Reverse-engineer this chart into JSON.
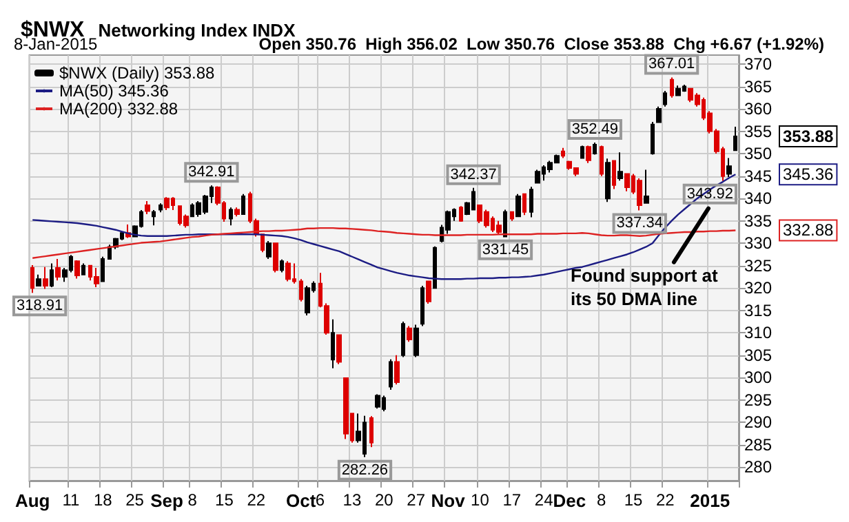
{
  "chart_data": {
    "type": "candlestick",
    "title": "$NWX",
    "subtitle": "Networking Index INDX",
    "categories": [
      "Aug",
      null,
      null,
      null,
      null,
      null,
      "11",
      null,
      null,
      null,
      null,
      "18",
      null,
      null,
      null,
      null,
      "25",
      null,
      null,
      null,
      null,
      "Sep",
      null,
      null,
      null,
      "8",
      null,
      null,
      null,
      null,
      "15",
      null,
      null,
      null,
      null,
      "22",
      null,
      null,
      null,
      null,
      null,
      null,
      "Oct",
      null,
      null,
      "6",
      null,
      null,
      null,
      null,
      "13",
      null,
      null,
      null,
      null,
      "20",
      null,
      null,
      null,
      null,
      "27",
      null,
      null,
      null,
      null,
      "Nov",
      null,
      null,
      null,
      null,
      "10",
      null,
      null,
      null,
      null,
      "17",
      null,
      null,
      null,
      null,
      "24",
      null,
      null,
      null,
      "Dec",
      null,
      null,
      null,
      null,
      "8",
      null,
      null,
      null,
      null,
      "15",
      null,
      null,
      null,
      null,
      "22",
      null,
      null,
      null,
      null,
      null,
      null,
      "2015",
      null,
      null,
      null,
      null
    ],
    "series": [
      {
        "type": "candlestick",
        "name": "$NWX (Daily) 353.88",
        "ohlc": [
          [
            324.5,
            325.1,
            318.91,
            320.0
          ],
          [
            320.5,
            323.0,
            320.5,
            322.0
          ],
          [
            322.0,
            324.7,
            319.8,
            320.5
          ],
          [
            320.5,
            325.5,
            320.2,
            324.0
          ],
          [
            324.5,
            326.5,
            321.7,
            322.5
          ],
          [
            322.5,
            324.5,
            321.4,
            324.0
          ],
          [
            324.0,
            327.4,
            323.5,
            327.0
          ],
          [
            326.0,
            326.2,
            322.1,
            322.8
          ],
          [
            323.0,
            325.5,
            323.0,
            325.0
          ],
          [
            325.0,
            325.0,
            321.7,
            322.5
          ],
          [
            322.5,
            324.5,
            320.2,
            321.0
          ],
          [
            321.5,
            327.0,
            321.5,
            326.5
          ],
          [
            326.5,
            329.7,
            326.5,
            329.2
          ],
          [
            329.2,
            331.2,
            328.7,
            331.0
          ],
          [
            331.0,
            332.6,
            330.7,
            332.3
          ],
          [
            332.3,
            334.2,
            331.2,
            331.5
          ],
          [
            331.5,
            334.0,
            331.5,
            333.8
          ],
          [
            333.8,
            337.4,
            333.5,
            337.0
          ],
          [
            338.5,
            339.4,
            336.5,
            337.2
          ],
          [
            336.0,
            337.4,
            334.0,
            337.0
          ],
          [
            337.5,
            338.9,
            336.9,
            338.5
          ],
          [
            340.0,
            340.3,
            337.4,
            338.0
          ],
          [
            340.0,
            340.3,
            337.4,
            338.5
          ],
          [
            338.3,
            338.3,
            334.0,
            334.5
          ],
          [
            336.0,
            336.4,
            333.5,
            334.0
          ],
          [
            336.0,
            338.9,
            335.9,
            338.5
          ],
          [
            336.5,
            339.4,
            335.9,
            339.0
          ],
          [
            337.0,
            340.8,
            336.5,
            340.5
          ],
          [
            340.5,
            342.91,
            339.0,
            342.5
          ],
          [
            342.5,
            342.7,
            338.5,
            339.0
          ],
          [
            339.0,
            339.4,
            334.8,
            335.5
          ],
          [
            335.5,
            338.0,
            334.0,
            337.5
          ],
          [
            337.5,
            338.0,
            336.0,
            336.5
          ],
          [
            336.5,
            341.0,
            336.5,
            340.5
          ],
          [
            341.0,
            341.5,
            334.5,
            335.0
          ],
          [
            335.0,
            335.5,
            331.5,
            332.0
          ],
          [
            332.0,
            332.0,
            328.0,
            328.5
          ],
          [
            327.0,
            330.5,
            326.5,
            330.0
          ],
          [
            330.0,
            330.0,
            323.5,
            324.0
          ],
          [
            324.0,
            326.4,
            323.5,
            326.0
          ],
          [
            325.5,
            326.0,
            321.5,
            322.0
          ],
          [
            322.0,
            325.5,
            321.0,
            321.5
          ],
          [
            321.5,
            322.0,
            317.0,
            317.5
          ],
          [
            314.5,
            320.5,
            313.9,
            320.0
          ],
          [
            319.5,
            321.5,
            319.0,
            321.0
          ],
          [
            321.0,
            323.4,
            315.7,
            316.0
          ],
          [
            316.0,
            316.6,
            309.6,
            310.0
          ],
          [
            304.0,
            313.0,
            302.1,
            310.0
          ],
          [
            309.5,
            309.6,
            303.0,
            303.5
          ],
          [
            299.9,
            299.9,
            286.3,
            287.5
          ],
          [
            292.0,
            292.1,
            285.5,
            286.0
          ],
          [
            286.0,
            292.0,
            285.5,
            288.0
          ],
          [
            283.0,
            291.5,
            282.26,
            290.0
          ],
          [
            291.0,
            291.4,
            284.5,
            285.5
          ],
          [
            293.5,
            296.3,
            293.1,
            296.0
          ],
          [
            293.0,
            296.0,
            292.5,
            295.5
          ],
          [
            298.0,
            304.1,
            297.3,
            303.5
          ],
          [
            303.5,
            305.0,
            298.5,
            299.0
          ],
          [
            305.0,
            312.5,
            304.6,
            312.0
          ],
          [
            311.0,
            311.5,
            308.0,
            308.5
          ],
          [
            305.0,
            311.8,
            304.6,
            311.0
          ],
          [
            312.0,
            320.5,
            311.5,
            320.0
          ],
          [
            321.5,
            321.5,
            316.5,
            317.0
          ],
          [
            320.0,
            329.3,
            320.0,
            329.0
          ],
          [
            330.5,
            334.1,
            330.2,
            333.5
          ],
          [
            333.0,
            337.3,
            332.1,
            337.0
          ],
          [
            336.0,
            337.8,
            335.0,
            337.5
          ],
          [
            338.0,
            338.3,
            334.8,
            335.0
          ],
          [
            336.5,
            339.2,
            336.3,
            339.0
          ],
          [
            337.5,
            342.37,
            337.5,
            341.5
          ],
          [
            338.5,
            338.5,
            334.5,
            335.0
          ],
          [
            337.0,
            337.5,
            333.5,
            334.0
          ],
          [
            335.5,
            336.0,
            332.5,
            333.0
          ],
          [
            334.0,
            335.0,
            332.0,
            332.5
          ],
          [
            331.5,
            337.5,
            331.45,
            337.0
          ],
          [
            337.0,
            337.0,
            335.0,
            335.5
          ],
          [
            336.0,
            341.0,
            336.0,
            340.5
          ],
          [
            341.0,
            341.0,
            336.3,
            337.0
          ],
          [
            337.0,
            342.6,
            335.8,
            342.0
          ],
          [
            343.5,
            346.4,
            343.5,
            346.0
          ],
          [
            345.5,
            347.4,
            344.0,
            347.0
          ],
          [
            346.5,
            348.4,
            345.8,
            348.0
          ],
          [
            348.0,
            349.8,
            347.9,
            349.5
          ],
          [
            350.5,
            351.3,
            349.0,
            349.5
          ],
          [
            348.2,
            348.4,
            346.4,
            346.8
          ],
          [
            346.8,
            346.9,
            345.0,
            345.5
          ],
          [
            349.0,
            351.8,
            348.9,
            351.5
          ],
          [
            351.5,
            351.8,
            347.9,
            348.5
          ],
          [
            350.0,
            352.49,
            349.8,
            352.0
          ],
          [
            351.5,
            351.8,
            345.0,
            345.5
          ],
          [
            340.0,
            348.9,
            339.2,
            348.0
          ],
          [
            348.4,
            348.4,
            342.1,
            343.0
          ],
          [
            344.5,
            350.3,
            344.0,
            346.0
          ],
          [
            345.5,
            345.5,
            341.6,
            342.5
          ],
          [
            345.0,
            345.5,
            341.0,
            341.5
          ],
          [
            344.0,
            344.5,
            337.34,
            338.5
          ],
          [
            339.0,
            346.4,
            338.9,
            340.5
          ],
          [
            350.0,
            357.1,
            349.8,
            356.5
          ],
          [
            357.0,
            360.5,
            357.0,
            360.0
          ],
          [
            361.0,
            364.0,
            360.5,
            363.5
          ],
          [
            366.5,
            367.01,
            362.5,
            363.0
          ],
          [
            363.0,
            365.2,
            363.0,
            364.5
          ],
          [
            364.0,
            365.4,
            363.8,
            365.0
          ],
          [
            364.5,
            364.5,
            361.5,
            362.0
          ],
          [
            363.0,
            363.5,
            360.5,
            361.0
          ],
          [
            362.0,
            362.5,
            357.5,
            358.0
          ],
          [
            359.0,
            359.5,
            354.5,
            355.0
          ],
          [
            355.0,
            355.5,
            350.0,
            350.5
          ],
          [
            351.0,
            351.5,
            343.92,
            345.0
          ],
          [
            345.5,
            349.0,
            344.8,
            347.21
          ],
          [
            350.76,
            356.02,
            350.76,
            353.88
          ]
        ],
        "colors": [
          "#dd0000",
          "#000000",
          "#dd0000",
          "#000000",
          "#dd0000",
          "#000000",
          "#000000",
          "#dd0000",
          "#000000",
          "#dd0000",
          "#dd0000",
          "#000000",
          "#000000",
          "#000000",
          "#000000",
          "#dd0000",
          "#000000",
          "#000000",
          "#dd0000",
          "#000000",
          "#000000",
          "#dd0000",
          "#dd0000",
          "#dd0000",
          "#dd0000",
          "#000000",
          "#000000",
          "#000000",
          "#000000",
          "#dd0000",
          "#dd0000",
          "#000000",
          "#dd0000",
          "#000000",
          "#dd0000",
          "#dd0000",
          "#dd0000",
          "#000000",
          "#dd0000",
          "#000000",
          "#dd0000",
          "#dd0000",
          "#dd0000",
          "#000000",
          "#000000",
          "#dd0000",
          "#dd0000",
          "#000000",
          "#dd0000",
          "#dd0000",
          "#dd0000",
          "#000000",
          "#000000",
          "#dd0000",
          "#000000",
          "#000000",
          "#000000",
          "#dd0000",
          "#000000",
          "#dd0000",
          "#000000",
          "#000000",
          "#dd0000",
          "#000000",
          "#000000",
          "#000000",
          "#000000",
          "#dd0000",
          "#000000",
          "#000000",
          "#dd0000",
          "#dd0000",
          "#dd0000",
          "#dd0000",
          "#000000",
          "#dd0000",
          "#000000",
          "#dd0000",
          "#000000",
          "#000000",
          "#000000",
          "#000000",
          "#000000",
          "#dd0000",
          "#dd0000",
          "#dd0000",
          "#000000",
          "#dd0000",
          "#000000",
          "#dd0000",
          "#000000",
          "#dd0000",
          "#000000",
          "#dd0000",
          "#dd0000",
          "#dd0000",
          "#000000",
          "#000000",
          "#000000",
          "#000000",
          "#dd0000",
          "#000000",
          "#000000",
          "#dd0000",
          "#dd0000",
          "#dd0000",
          "#dd0000",
          "#dd0000",
          "#dd0000",
          "#000000",
          "#000000"
        ]
      },
      {
        "type": "line",
        "name": "MA(50) 345.36",
        "color": "#1c1c84",
        "values": [
          335.2,
          335.1,
          335.0,
          334.9,
          334.8,
          334.7,
          334.6,
          334.5,
          334.3,
          334.1,
          333.9,
          333.6,
          333.3,
          333.0,
          332.6,
          332.2,
          331.9,
          331.7,
          331.6,
          331.6,
          331.6,
          331.6,
          331.7,
          331.8,
          331.9,
          331.9,
          332.0,
          332.0,
          332.0,
          332.0,
          332.0,
          332.0,
          332.0,
          332.0,
          332.0,
          332.0,
          331.9,
          331.8,
          331.7,
          331.6,
          331.4,
          331.1,
          330.7,
          330.2,
          329.8,
          329.4,
          329.0,
          328.6,
          328.2,
          327.6,
          327.0,
          326.4,
          325.8,
          325.2,
          324.6,
          324.2,
          323.8,
          323.4,
          323.1,
          322.8,
          322.6,
          322.4,
          322.2,
          322.1,
          322.0,
          322.0,
          322.0,
          322.0,
          322.1,
          322.1,
          322.2,
          322.2,
          322.2,
          322.3,
          322.3,
          322.4,
          322.4,
          322.5,
          322.6,
          322.8,
          323.0,
          323.3,
          323.6,
          323.9,
          324.2,
          324.5,
          324.7,
          325.1,
          325.5,
          325.9,
          326.3,
          326.7,
          327.1,
          327.5,
          328.0,
          328.6,
          329.2,
          330.0,
          331.8,
          333.5,
          335.0,
          336.4,
          337.6,
          338.8,
          340.0,
          341.0,
          342.0,
          342.9,
          343.7,
          344.6,
          345.36
        ]
      },
      {
        "type": "line",
        "name": "MA(200) 332.88",
        "color": "#dd2222",
        "values": [
          326.7,
          326.9,
          327.1,
          327.3,
          327.5,
          327.7,
          327.9,
          328.1,
          328.3,
          328.5,
          328.7,
          328.9,
          329.1,
          329.3,
          329.5,
          329.7,
          329.9,
          330.1,
          330.2,
          330.3,
          330.4,
          330.6,
          330.8,
          331.0,
          331.2,
          331.4,
          331.5,
          331.7,
          331.9,
          332.0,
          332.1,
          332.2,
          332.3,
          332.4,
          332.5,
          332.6,
          332.7,
          332.7,
          332.8,
          332.8,
          332.9,
          333.0,
          333.1,
          333.3,
          333.3,
          333.4,
          333.4,
          333.4,
          333.3,
          333.3,
          333.2,
          333.1,
          333.0,
          332.9,
          332.7,
          332.6,
          332.5,
          332.3,
          332.2,
          332.1,
          332.0,
          331.9,
          331.9,
          331.8,
          331.8,
          331.8,
          331.8,
          331.8,
          331.9,
          331.9,
          331.9,
          331.9,
          331.9,
          332.0,
          332.0,
          332.0,
          332.0,
          332.0,
          332.0,
          332.1,
          332.1,
          332.1,
          332.1,
          332.2,
          332.2,
          332.2,
          332.3,
          332.2,
          332.0,
          331.8,
          331.7,
          331.7,
          331.8,
          331.8,
          331.7,
          331.6,
          331.7,
          331.9,
          332.1,
          332.2,
          332.3,
          332.4,
          332.5,
          332.5,
          332.6,
          332.6,
          332.7,
          332.7,
          332.8,
          332.8,
          332.88
        ]
      }
    ],
    "ylim": [
      277,
      372
    ],
    "yticks": [
      280,
      285,
      290,
      295,
      300,
      305,
      310,
      315,
      320,
      325,
      330,
      335,
      340,
      345,
      350,
      355,
      360,
      365,
      370
    ],
    "grid": true,
    "legend": "top left",
    "annotations": [
      "8-Jan-2015",
      "Open 350.76  High 356.02  Low 350.76  Close 353.88  Chg +6.67 (+1.92%)",
      {
        "text": "318.91",
        "y": 318.91
      },
      {
        "text": "342.91",
        "y": 342.91
      },
      {
        "text": "282.26",
        "y": 282.26
      },
      {
        "text": "342.37",
        "y": 342.37
      },
      {
        "text": "331.45",
        "y": 331.45
      },
      {
        "text": "352.49",
        "y": 352.49
      },
      {
        "text": "337.34",
        "y": 337.34
      },
      {
        "text": "367.01",
        "y": 367.01
      },
      {
        "text": "343.92",
        "y": 343.92
      },
      "353.88",
      "345.36",
      "332.88",
      "Found support at its 50 DMA line"
    ]
  }
}
